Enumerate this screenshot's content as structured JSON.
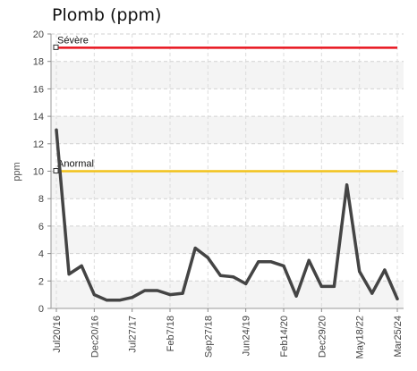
{
  "chart_data": {
    "type": "line",
    "title": "Plomb (ppm)",
    "xlabel": "",
    "ylabel": "ppm",
    "ylim": [
      0,
      20
    ],
    "yticks": [
      0,
      2,
      4,
      6,
      8,
      10,
      12,
      14,
      16,
      18,
      20
    ],
    "x_tick_labels": [
      "Jul20/16",
      "Dec20/16",
      "Jul27/17",
      "Feb7/18",
      "Sep27/18",
      "Jun24/19",
      "Feb14/20",
      "Dec29/20",
      "May18/22",
      "Mar25/24"
    ],
    "grid": true,
    "thresholds": [
      {
        "label": "Sévère",
        "value": 19,
        "color": "#e8141e"
      },
      {
        "label": "Anormal",
        "value": 10,
        "color": "#f2c21a"
      }
    ],
    "series": [
      {
        "color": "#444444",
        "values": [
          13.0,
          2.5,
          3.1,
          1.0,
          0.6,
          0.6,
          0.8,
          1.3,
          1.3,
          1.0,
          1.1,
          4.4,
          3.7,
          2.4,
          2.3,
          1.8,
          3.4,
          3.4,
          3.1,
          0.9,
          3.5,
          1.6,
          1.6,
          9.0,
          2.7,
          1.1,
          2.8,
          0.7
        ]
      }
    ]
  }
}
